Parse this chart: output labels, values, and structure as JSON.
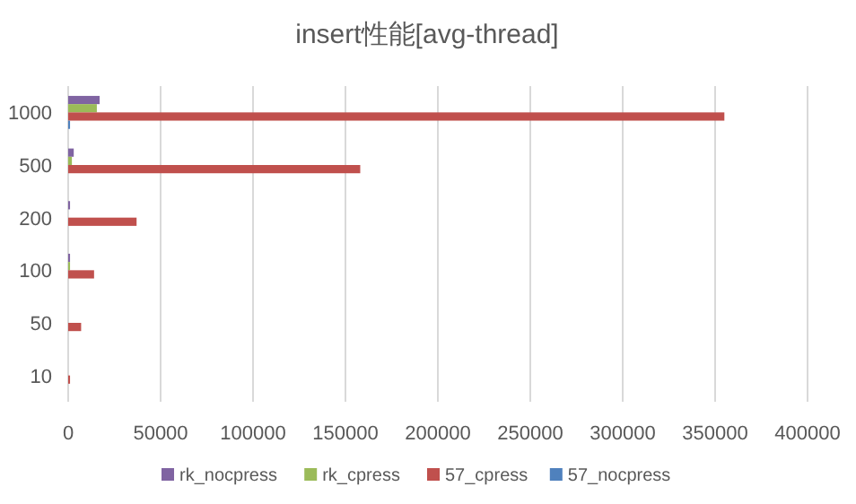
{
  "chart_data": {
    "type": "bar",
    "orientation": "horizontal",
    "title": "insert性能[avg-thread]",
    "categories": [
      "1000",
      "500",
      "200",
      "100",
      "50",
      "10"
    ],
    "series": [
      {
        "name": "rk_nocpress",
        "color": "#8064a2",
        "values": [
          17000,
          3000,
          1000,
          1000,
          0,
          0
        ]
      },
      {
        "name": "rk_cpress",
        "color": "#9bbb59",
        "values": [
          15500,
          2000,
          0,
          1000,
          0,
          0
        ]
      },
      {
        "name": "57_cpress",
        "color": "#c0504d",
        "values": [
          355000,
          158000,
          37000,
          14000,
          7000,
          1000
        ]
      },
      {
        "name": "57_nocpress",
        "color": "#4f81bd",
        "values": [
          1000,
          0,
          0,
          0,
          0,
          0
        ]
      }
    ],
    "xlim": [
      0,
      400000
    ],
    "xticks": [
      0,
      50000,
      100000,
      150000,
      200000,
      250000,
      300000,
      350000,
      400000
    ],
    "grid": "x",
    "legend": "bottom"
  }
}
